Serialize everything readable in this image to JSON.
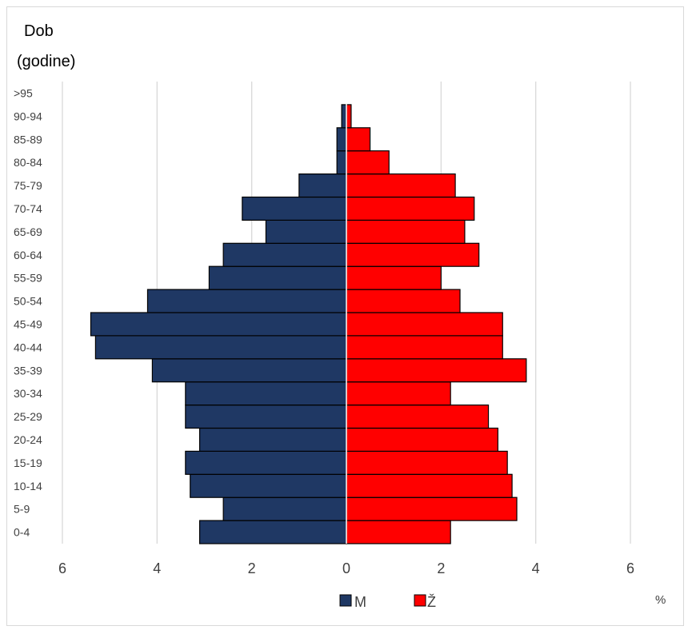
{
  "chart_data": {
    "type": "bar",
    "orientation": "horizontal-population-pyramid",
    "ylabel_line1": "Dob",
    "ylabel_line2": "(godine)",
    "unit_label": "%",
    "categories": [
      "0-4",
      "5-9",
      "10-14",
      "15-19",
      "20-24",
      "25-29",
      "30-34",
      "35-39",
      "40-44",
      "45-49",
      "50-54",
      "55-59",
      "60-64",
      "65-69",
      "70-74",
      "75-79",
      "80-84",
      "85-89",
      "90-94",
      ">95"
    ],
    "series": [
      {
        "name": "M",
        "color": "#1f3864",
        "direction": "left",
        "values": [
          3.1,
          2.6,
          3.3,
          3.4,
          3.1,
          3.4,
          3.4,
          4.1,
          5.3,
          5.4,
          4.2,
          2.9,
          2.6,
          1.7,
          2.2,
          1.0,
          0.2,
          0.2,
          0.1,
          0
        ]
      },
      {
        "name": "Ž",
        "color": "#ff0000",
        "direction": "right",
        "values": [
          2.2,
          3.6,
          3.5,
          3.4,
          3.2,
          3.0,
          2.2,
          3.8,
          3.3,
          3.3,
          2.4,
          2.0,
          2.8,
          2.5,
          2.7,
          2.3,
          0.9,
          0.5,
          0.1,
          0
        ]
      }
    ],
    "xlim": [
      -6,
      6
    ],
    "xticks": [
      6,
      4,
      2,
      0,
      2,
      4,
      6
    ],
    "grid": true,
    "legend": "bottom-center"
  }
}
